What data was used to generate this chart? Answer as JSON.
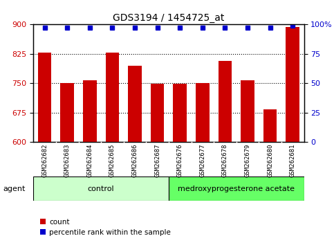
{
  "title": "GDS3194 / 1454725_at",
  "categories": [
    "GSM262682",
    "GSM262683",
    "GSM262684",
    "GSM262685",
    "GSM262686",
    "GSM262687",
    "GSM262676",
    "GSM262677",
    "GSM262678",
    "GSM262679",
    "GSM262680",
    "GSM262681"
  ],
  "bar_values": [
    828,
    750,
    757,
    829,
    795,
    748,
    748,
    751,
    808,
    758,
    683,
    893
  ],
  "percentile_values": [
    97,
    97,
    97,
    97,
    97,
    97,
    97,
    97,
    97,
    97,
    97,
    99
  ],
  "bar_color": "#cc0000",
  "dot_color": "#0000cc",
  "ylim_left": [
    600,
    900
  ],
  "ylim_right": [
    0,
    100
  ],
  "yticks_left": [
    600,
    675,
    750,
    825,
    900
  ],
  "yticks_right": [
    0,
    25,
    50,
    75,
    100
  ],
  "ytick_labels_right": [
    "0",
    "25",
    "50",
    "75",
    "100%"
  ],
  "hlines": [
    675,
    750,
    825
  ],
  "agent_groups": [
    {
      "label": "control",
      "start": 0,
      "end": 5,
      "color": "#ccffcc"
    },
    {
      "label": "medroxyprogesterone acetate",
      "start": 6,
      "end": 11,
      "color": "#66ff66"
    }
  ],
  "legend_items": [
    {
      "color": "#cc0000",
      "label": "count"
    },
    {
      "color": "#0000cc",
      "label": "percentile rank within the sample"
    }
  ],
  "agent_label": "agent",
  "left_tick_color": "#cc0000",
  "right_tick_color": "#0000cc",
  "bar_width": 0.6,
  "background_color": "#ffffff",
  "plot_bg_color": "#ffffff",
  "tick_label_bg": "#d4d4d4"
}
